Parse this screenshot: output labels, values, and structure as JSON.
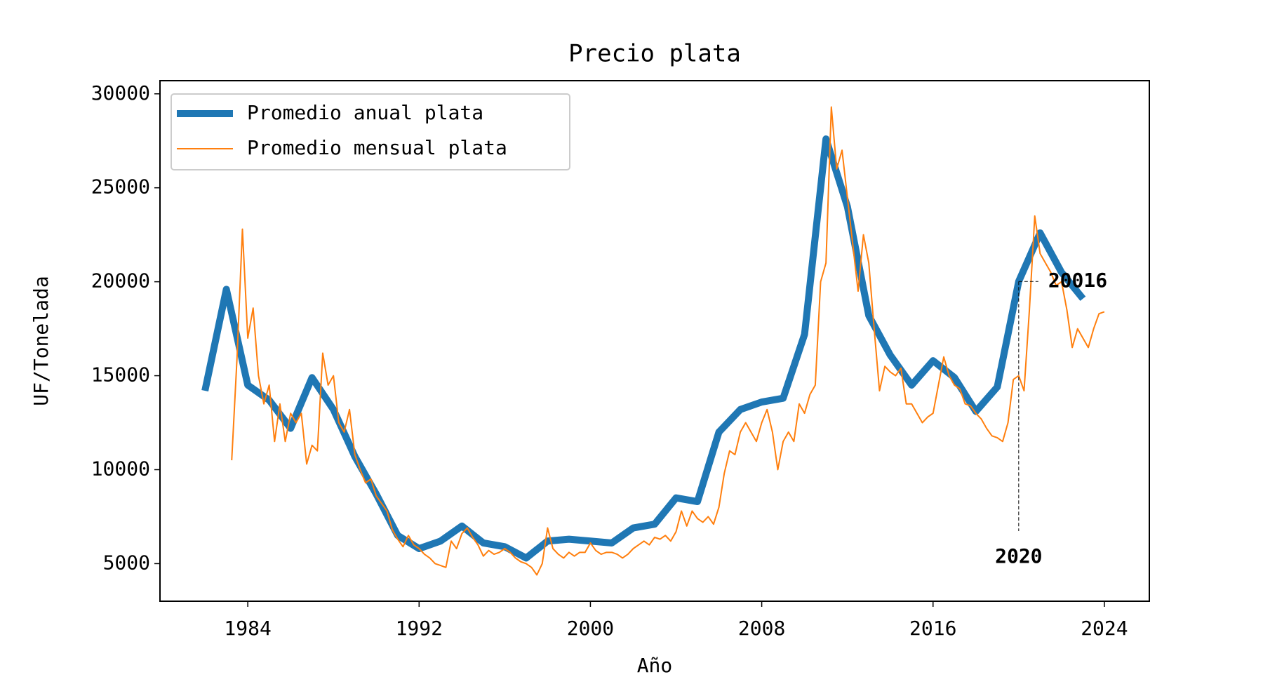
{
  "chart_data": {
    "type": "line",
    "title": "Precio plata",
    "x_label": "Año",
    "y_label": "UF/Tonelada",
    "xlim": [
      1979.9,
      2026.1
    ],
    "xticks": [
      1984,
      1992,
      2000,
      2008,
      2016,
      2024
    ],
    "ylim": [
      3000,
      30700
    ],
    "yticks": [
      5000,
      10000,
      15000,
      20000,
      25000,
      30000
    ],
    "legend": "upper left",
    "series": [
      {
        "name": "Promedio anual plata",
        "color": "#1f77b4",
        "width": 10,
        "x": [
          1982,
          1983,
          1984,
          1985,
          1986,
          1987,
          1988,
          1989,
          1990,
          1991,
          1992,
          1993,
          1994,
          1995,
          1996,
          1997,
          1998,
          1999,
          2000,
          2001,
          2002,
          2003,
          2004,
          2005,
          2006,
          2007,
          2008,
          2009,
          2010,
          2011,
          2012,
          2013,
          2014,
          2015,
          2016,
          2017,
          2018,
          2019,
          2020,
          2021,
          2022,
          2023
        ],
        "values": [
          14200,
          19600,
          14500,
          13700,
          12200,
          14900,
          13200,
          10700,
          8700,
          6500,
          5800,
          6200,
          7000,
          6100,
          5900,
          5300,
          6200,
          6300,
          6200,
          6100,
          6900,
          7100,
          8500,
          8300,
          12000,
          13200,
          13600,
          13800,
          17200,
          27600,
          24000,
          18200,
          16100,
          14500,
          15800,
          14900,
          13100,
          14400,
          20016,
          22600,
          20500,
          19100
        ]
      },
      {
        "name": "Promedio mensual plata",
        "color": "#ff7f0e",
        "width": 2,
        "x": [
          1983.25,
          1983.5,
          1983.75,
          1984,
          1984.25,
          1984.5,
          1984.75,
          1985,
          1985.25,
          1985.5,
          1985.75,
          1986,
          1986.25,
          1986.5,
          1986.75,
          1987,
          1987.25,
          1987.5,
          1987.75,
          1988,
          1988.25,
          1988.5,
          1988.75,
          1989,
          1989.25,
          1989.5,
          1989.75,
          1990,
          1990.25,
          1990.5,
          1990.75,
          1991,
          1991.25,
          1991.5,
          1991.75,
          1992,
          1992.25,
          1992.5,
          1992.75,
          1993,
          1993.25,
          1993.5,
          1993.75,
          1994,
          1994.25,
          1994.5,
          1994.75,
          1995,
          1995.25,
          1995.5,
          1995.75,
          1996,
          1996.25,
          1996.5,
          1996.75,
          1997,
          1997.25,
          1997.5,
          1997.75,
          1998,
          1998.25,
          1998.5,
          1998.75,
          1999,
          1999.25,
          1999.5,
          1999.75,
          2000,
          2000.25,
          2000.5,
          2000.75,
          2001,
          2001.25,
          2001.5,
          2001.75,
          2002,
          2002.25,
          2002.5,
          2002.75,
          2003,
          2003.25,
          2003.5,
          2003.75,
          2004,
          2004.25,
          2004.5,
          2004.75,
          2005,
          2005.25,
          2005.5,
          2005.75,
          2006,
          2006.25,
          2006.5,
          2006.75,
          2007,
          2007.25,
          2007.5,
          2007.75,
          2008,
          2008.25,
          2008.5,
          2008.75,
          2009,
          2009.25,
          2009.5,
          2009.75,
          2010,
          2010.25,
          2010.5,
          2010.75,
          2011,
          2011.25,
          2011.5,
          2011.75,
          2012,
          2012.25,
          2012.5,
          2012.75,
          2013,
          2013.25,
          2013.5,
          2013.75,
          2014,
          2014.25,
          2014.5,
          2014.75,
          2015,
          2015.25,
          2015.5,
          2015.75,
          2016,
          2016.25,
          2016.5,
          2016.75,
          2017,
          2017.25,
          2017.5,
          2017.75,
          2018,
          2018.25,
          2018.5,
          2018.75,
          2019,
          2019.25,
          2019.5,
          2019.75,
          2020,
          2020.25,
          2020.5,
          2020.75,
          2021,
          2021.25,
          2021.5,
          2021.75,
          2022,
          2022.25,
          2022.5,
          2022.75,
          2023,
          2023.25,
          2023.5,
          2023.75,
          2024
        ],
        "values": [
          10500,
          16000,
          22800,
          17000,
          18600,
          15000,
          13500,
          14500,
          11500,
          13500,
          11500,
          13000,
          12500,
          13000,
          10300,
          11300,
          11000,
          16200,
          14500,
          15000,
          12500,
          12000,
          13200,
          10800,
          10000,
          9300,
          9500,
          8600,
          8200,
          7800,
          6800,
          6300,
          5900,
          6500,
          6000,
          5800,
          5500,
          5300,
          5000,
          4900,
          4800,
          6200,
          5800,
          6600,
          6900,
          6400,
          6000,
          5400,
          5700,
          5500,
          5600,
          5800,
          5600,
          5300,
          5100,
          5000,
          4800,
          4400,
          5000,
          6900,
          5800,
          5500,
          5300,
          5600,
          5400,
          5600,
          5600,
          6100,
          5700,
          5500,
          5600,
          5600,
          5500,
          5300,
          5500,
          5800,
          6000,
          6200,
          6000,
          6400,
          6300,
          6500,
          6200,
          6700,
          7800,
          7000,
          7800,
          7400,
          7200,
          7500,
          7100,
          8000,
          9800,
          11000,
          10800,
          12000,
          12500,
          12000,
          11500,
          12500,
          13200,
          12000,
          10000,
          11500,
          12000,
          11500,
          13500,
          13000,
          14000,
          14500,
          20000,
          21000,
          29300,
          26000,
          27000,
          24500,
          22000,
          19500,
          22500,
          21000,
          17500,
          14200,
          15500,
          15200,
          15000,
          15400,
          13500,
          13500,
          13000,
          12500,
          12800,
          13000,
          14500,
          16000,
          15000,
          14500,
          14300,
          13500,
          13400,
          13000,
          12700,
          12200,
          11800,
          11700,
          11500,
          12500,
          14800,
          15000,
          14200,
          18500,
          23500,
          21500,
          21000,
          20500,
          19800,
          20000,
          18500,
          16500,
          17500,
          17000,
          16500,
          17500,
          18300,
          18400
        ]
      }
    ],
    "annotation": {
      "x": 2020,
      "y": 20016,
      "x_label": "2020",
      "y_label": "20016"
    }
  }
}
